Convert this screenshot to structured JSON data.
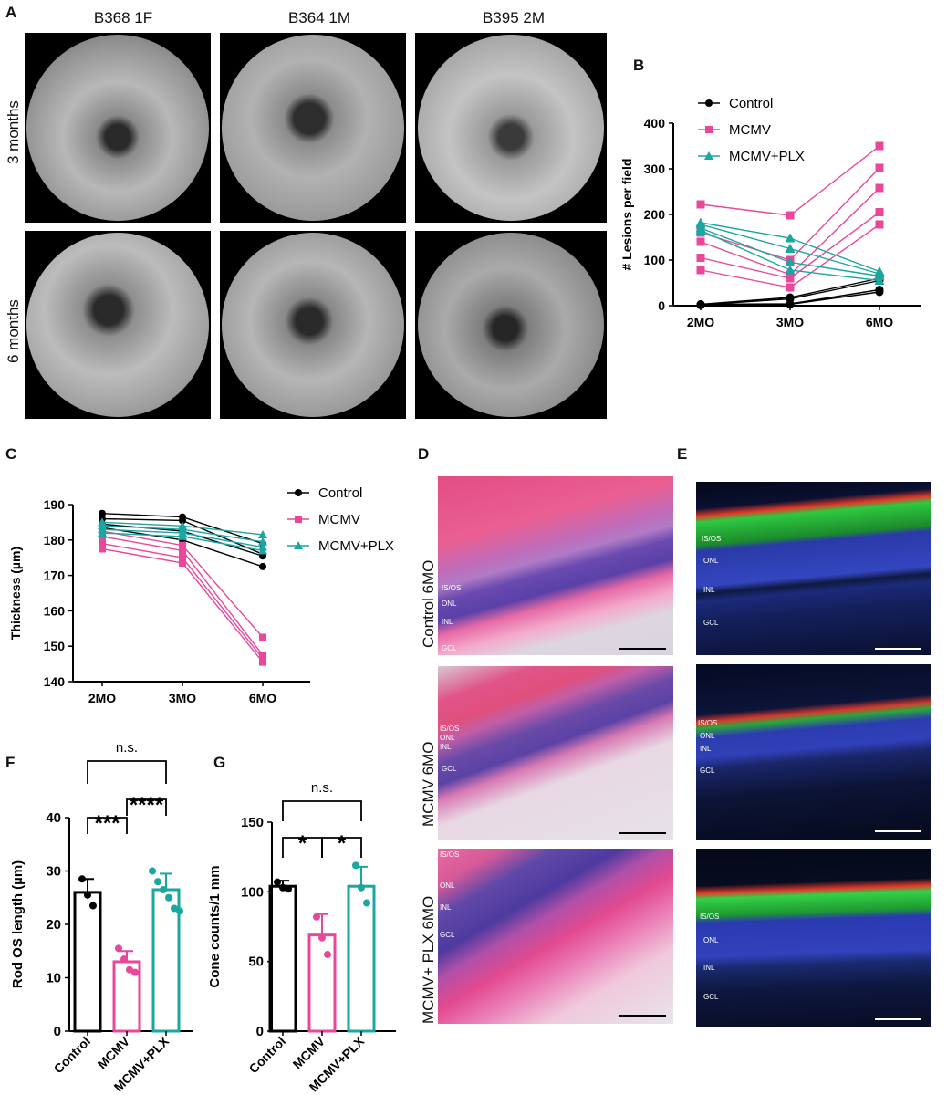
{
  "panels": {
    "A": {
      "letter": "A",
      "columns": [
        "B368 1F",
        "B364 1M",
        "B395 2M"
      ],
      "rows": [
        "3 months",
        "6 months"
      ]
    },
    "B": {
      "letter": "B"
    },
    "C": {
      "letter": "C"
    },
    "D": {
      "letter": "D",
      "rows": [
        "Control 6MO",
        "MCMV 6MO",
        "MCMV+ PLX 6MO"
      ],
      "layers": {
        "isos": "IS/OS",
        "onl": "ONL",
        "inl": "INL",
        "gcl": "GCL"
      }
    },
    "E": {
      "letter": "E",
      "layers": {
        "isos": "IS/OS",
        "onl": "ONL",
        "inl": "INL",
        "gcl": "GCL"
      }
    },
    "F": {
      "letter": "F"
    },
    "G": {
      "letter": "G"
    }
  },
  "colors": {
    "control": "#000000",
    "mcmv": "#e8479a",
    "plx": "#1aa6a1"
  },
  "chart_data": [
    {
      "id": "B",
      "type": "line",
      "categories": [
        "2MO",
        "3MO",
        "6MO"
      ],
      "ylabel": "# Lesions per field",
      "xlabel": "",
      "ylim": [
        0,
        400
      ],
      "yticks": [
        0,
        100,
        200,
        300,
        400
      ],
      "legend": [
        "Control",
        "MCMV",
        "MCMV+PLX"
      ],
      "legend_position": "top-right",
      "series": [
        {
          "group": "Control",
          "values": [
            3,
            18,
            60
          ]
        },
        {
          "group": "Control",
          "values": [
            2,
            15,
            55
          ]
        },
        {
          "group": "Control",
          "values": [
            3,
            4,
            35
          ]
        },
        {
          "group": "Control",
          "values": [
            1,
            3,
            30
          ]
        },
        {
          "group": "MCMV",
          "values": [
            222,
            198,
            350
          ]
        },
        {
          "group": "MCMV",
          "values": [
            160,
            100,
            302
          ]
        },
        {
          "group": "MCMV",
          "values": [
            140,
            68,
            258
          ]
        },
        {
          "group": "MCMV",
          "values": [
            105,
            60,
            205
          ]
        },
        {
          "group": "MCMV",
          "values": [
            78,
            40,
            178
          ]
        },
        {
          "group": "MCMV+PLX",
          "values": [
            182,
            148,
            75
          ]
        },
        {
          "group": "MCMV+PLX",
          "values": [
            178,
            125,
            70
          ]
        },
        {
          "group": "MCMV+PLX",
          "values": [
            170,
            95,
            65
          ]
        },
        {
          "group": "MCMV+PLX",
          "values": [
            165,
            78,
            55
          ]
        }
      ]
    },
    {
      "id": "C",
      "type": "line",
      "categories": [
        "2MO",
        "3MO",
        "6MO"
      ],
      "ylabel": "Thickness (µm)",
      "xlabel": "",
      "ylim": [
        140,
        190
      ],
      "yticks": [
        140,
        150,
        160,
        170,
        180,
        190
      ],
      "legend": [
        "Control",
        "MCMV",
        "MCMV+PLX"
      ],
      "legend_position": "top-right",
      "series": [
        {
          "group": "Control",
          "values": [
            187.5,
            186.5,
            179
          ]
        },
        {
          "group": "Control",
          "values": [
            186,
            185.5,
            176
          ]
        },
        {
          "group": "Control",
          "values": [
            184.5,
            182.5,
            175.5
          ]
        },
        {
          "group": "Control",
          "values": [
            183.5,
            180,
            172.5
          ]
        },
        {
          "group": "MCMV",
          "values": [
            182.5,
            178.5,
            152.5
          ]
        },
        {
          "group": "MCMV",
          "values": [
            181,
            177,
            147.5
          ]
        },
        {
          "group": "MCMV",
          "values": [
            179,
            175,
            146.5
          ]
        },
        {
          "group": "MCMV",
          "values": [
            177.5,
            173.5,
            145.5
          ]
        },
        {
          "group": "MCMV+PLX",
          "values": [
            185,
            184,
            181.5
          ]
        },
        {
          "group": "MCMV+PLX",
          "values": [
            184,
            183,
            179.5
          ]
        },
        {
          "group": "MCMV+PLX",
          "values": [
            183,
            182,
            178
          ]
        },
        {
          "group": "MCMV+PLX",
          "values": [
            182,
            181,
            177
          ]
        }
      ]
    },
    {
      "id": "F",
      "type": "bar",
      "categories": [
        "Control",
        "MCMV",
        "MCMV+PLX"
      ],
      "ylabel": "Rod OS length (µm)",
      "ylim": [
        0,
        40
      ],
      "yticks": [
        0,
        10,
        20,
        30,
        40
      ],
      "values": [
        26,
        13,
        26.5
      ],
      "errors": [
        2.5,
        2,
        3
      ],
      "points": [
        [
          28.5,
          25.5,
          23.5
        ],
        [
          15.5,
          13.5,
          11.5,
          11
        ],
        [
          30,
          28,
          26.5,
          25,
          23,
          22.5
        ]
      ],
      "significance": [
        {
          "pair": [
            0,
            1
          ],
          "label": "***"
        },
        {
          "pair": [
            1,
            2
          ],
          "label": "****"
        },
        {
          "pair": [
            0,
            2
          ],
          "label": "n.s."
        }
      ]
    },
    {
      "id": "G",
      "type": "bar",
      "categories": [
        "Control",
        "MCMV",
        "MCMV+PLX"
      ],
      "ylabel": "Cone counts/1 mm",
      "ylim": [
        0,
        150
      ],
      "yticks": [
        0,
        50,
        100,
        150
      ],
      "values": [
        104,
        69,
        104
      ],
      "errors": [
        4,
        15,
        14
      ],
      "points": [
        [
          107,
          103,
          102
        ],
        [
          82,
          67,
          55
        ],
        [
          119,
          103,
          92
        ]
      ],
      "significance": [
        {
          "pair": [
            0,
            1
          ],
          "label": "*"
        },
        {
          "pair": [
            1,
            2
          ],
          "label": "*"
        },
        {
          "pair": [
            0,
            2
          ],
          "label": "n.s."
        }
      ]
    }
  ]
}
